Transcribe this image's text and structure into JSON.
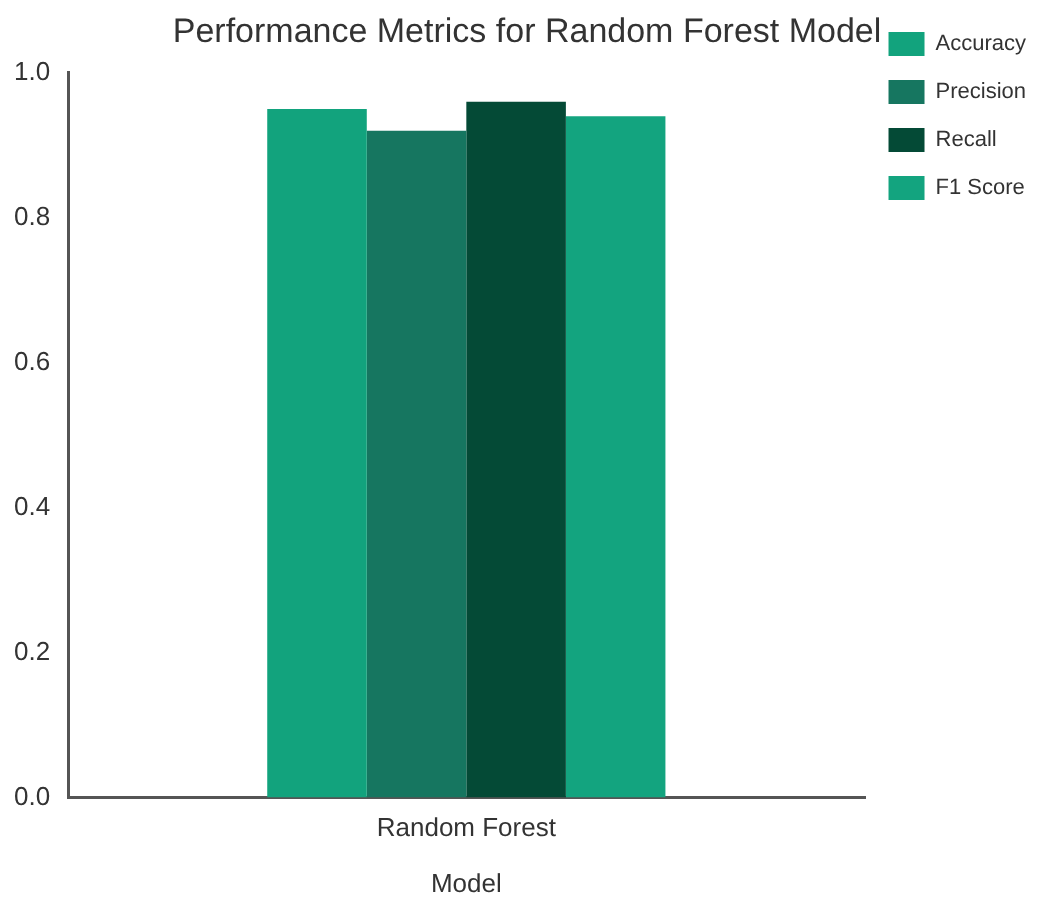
{
  "chart_data": {
    "type": "bar",
    "title": "Performance Metrics for Random Forest Model",
    "xlabel": "Model",
    "categories": [
      "Random Forest"
    ],
    "series": [
      {
        "name": "Accuracy",
        "color": "#12a37d",
        "values": [
          0.95
        ]
      },
      {
        "name": "Precision",
        "color": "#167660",
        "values": [
          0.92
        ]
      },
      {
        "name": "Recall",
        "color": "#044a36",
        "values": [
          0.96
        ]
      },
      {
        "name": "F1 Score",
        "color": "#13a47f",
        "values": [
          0.94
        ]
      }
    ],
    "ylim": [
      0,
      1
    ],
    "yticks": [
      {
        "value": 0,
        "label": "0.0"
      },
      {
        "value": 0.2,
        "label": "0.2"
      },
      {
        "value": 0.4,
        "label": "0.4"
      },
      {
        "value": 0.6,
        "label": "0.6"
      },
      {
        "value": 0.8,
        "label": "0.8"
      },
      {
        "value": 1,
        "label": "1.0"
      }
    ],
    "grid": false,
    "legend": "top right"
  }
}
